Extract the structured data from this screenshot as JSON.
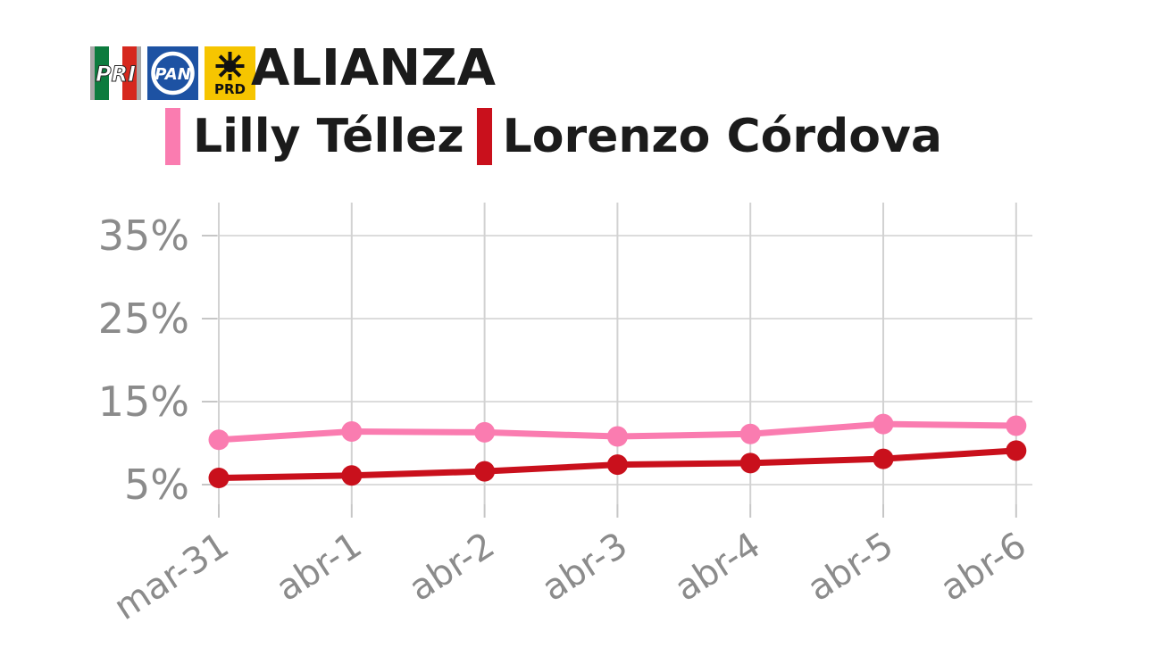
{
  "header": {
    "title": "ALIANZA",
    "logos": [
      {
        "name": "pri-logo",
        "label": "PRI"
      },
      {
        "name": "pan-logo",
        "label": "PAN"
      },
      {
        "name": "prd-logo",
        "label": "PRD"
      }
    ]
  },
  "legend": [
    {
      "label": "Lilly Téllez",
      "color": "#fa7cb0"
    },
    {
      "label": "Lorenzo Córdova",
      "color": "#c9101c"
    }
  ],
  "chart_data": {
    "type": "line",
    "title": "ALIANZA",
    "categories": [
      "mar-31",
      "abr-1",
      "abr-2",
      "abr-3",
      "abr-4",
      "abr-5",
      "abr-6"
    ],
    "series": [
      {
        "name": "Lilly Téllez",
        "color": "#fa7cb0",
        "values": [
          10.4,
          11.4,
          11.3,
          10.8,
          11.1,
          12.3,
          12.1
        ]
      },
      {
        "name": "Lorenzo Córdova",
        "color": "#c9101c",
        "values": [
          5.8,
          6.1,
          6.6,
          7.4,
          7.6,
          8.1,
          9.1
        ]
      }
    ],
    "xlabel": "",
    "ylabel": "",
    "y_ticks": [
      "5%",
      "15%",
      "25%",
      "35%"
    ],
    "y_tick_values": [
      5,
      15,
      25,
      35
    ],
    "ylim": [
      2.6,
      39
    ],
    "grid": true,
    "legend_position": "top",
    "axis_text_color": "#8b8b8b"
  }
}
